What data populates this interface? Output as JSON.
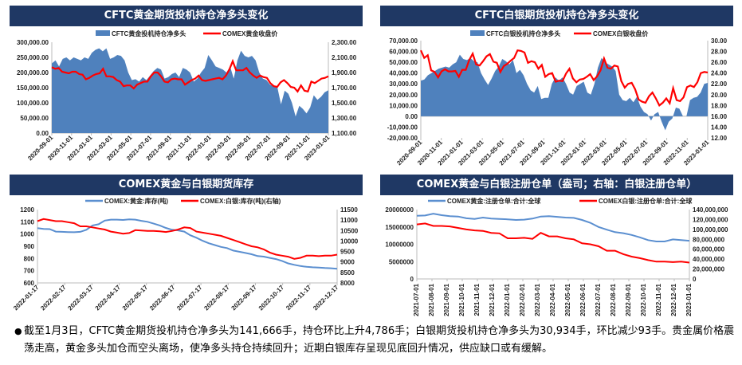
{
  "colors": {
    "navy": "#1f3864",
    "area": "#4f81bd",
    "red": "#ff0000",
    "blue": "#5b8fd0"
  },
  "chart_data": [
    {
      "id": "c1",
      "type": "area+line",
      "title": "CFTC黄金期货投机持仓净多头变化",
      "legend": [
        "CFTC黄金投机持仓净多头",
        "COMEX黄金收盘价"
      ],
      "ylim": [
        0,
        300000
      ],
      "y2lim": [
        1100,
        2300
      ],
      "yticks": [
        "0.00",
        "50,000.00",
        "100,000.00",
        "150,000.00",
        "200,000.00",
        "250,000.00",
        "300,000.00"
      ],
      "y2ticks": [
        "1,100.00",
        "1,300.00",
        "1,500.00",
        "1,700.00",
        "1,900.00",
        "2,100.00",
        "2,300.00"
      ],
      "xticks": [
        "2020-09-01",
        "2020-11-01",
        "2021-01-01",
        "2021-03-01",
        "2021-05-01",
        "2021-07-01",
        "2021-09-01",
        "2021-11-01",
        "2022-01-01",
        "2022-03-01",
        "2022-05-01",
        "2022-07-01",
        "2022-09-01",
        "2022-11-01",
        "2023-01-01"
      ],
      "series": [
        {
          "name": "CFTC黄金投机持仓净多头",
          "axis": "left",
          "kind": "area",
          "values": [
            230000,
            240000,
            220000,
            245000,
            250000,
            240000,
            250000,
            245000,
            240000,
            250000,
            245000,
            265000,
            275000,
            280000,
            270000,
            280000,
            245000,
            250000,
            258000,
            255000,
            240000,
            200000,
            175000,
            178000,
            170000,
            185000,
            175000,
            190000,
            205000,
            215000,
            210000,
            180000,
            185000,
            195000,
            200000,
            185000,
            215000,
            210000,
            200000,
            170000,
            180000,
            200000,
            215000,
            258000,
            240000,
            220000,
            215000,
            210000,
            200000,
            220000,
            180000,
            240000,
            272000,
            255000,
            250000,
            255000,
            240000,
            200000,
            180000,
            175000,
            160000,
            155000,
            150000,
            95000,
            140000,
            130000,
            100000,
            55000,
            90000,
            80000,
            65000,
            85000,
            125000,
            110000,
            120000,
            135000,
            141666
          ]
        },
        {
          "name": "COMEX黄金收盘价",
          "axis": "right",
          "kind": "line",
          "values": [
            1970,
            1950,
            1960,
            1910,
            1900,
            1890,
            1910,
            1910,
            1880,
            1870,
            1810,
            1830,
            1860,
            1880,
            1890,
            1950,
            1850,
            1850,
            1840,
            1800,
            1780,
            1720,
            1730,
            1730,
            1690,
            1740,
            1760,
            1780,
            1780,
            1850,
            1900,
            1900,
            1850,
            1780,
            1770,
            1810,
            1820,
            1810,
            1810,
            1740,
            1770,
            1800,
            1820,
            1860,
            1800,
            1790,
            1800,
            1810,
            1820,
            1830,
            1810,
            1860,
            1940,
            2050,
            1930,
            1930,
            1930,
            1960,
            1900,
            1860,
            1830,
            1860,
            1840,
            1830,
            1760,
            1720,
            1710,
            1770,
            1800,
            1760,
            1710,
            1700,
            1650,
            1730,
            1660,
            1650,
            1780,
            1760,
            1790,
            1820,
            1830,
            1850
          ]
        }
      ]
    },
    {
      "id": "c2",
      "type": "area+line",
      "title": "CFTC白银期货投机持仓净多头变化",
      "legend": [
        "CFTC白银投机持仓净多头",
        "COMEX白银收盘价"
      ],
      "ylim": [
        -20000,
        70000
      ],
      "y2lim": [
        12,
        30
      ],
      "yticks": [
        "-20,000.00",
        "-10,000.00",
        "0.00",
        "10,000.00",
        "20,000.00",
        "30,000.00",
        "40,000.00",
        "50,000.00",
        "60,000.00",
        "70,000.00"
      ],
      "y2ticks": [
        "12.00",
        "14.00",
        "16.00",
        "18.00",
        "20.00",
        "22.00",
        "24.00",
        "26.00",
        "28.00",
        "30.00"
      ],
      "xticks": [
        "2020-09-01",
        "2020-11-01",
        "2021-01-01",
        "2021-03-01",
        "2021-05-01",
        "2021-07-01",
        "2021-09-01",
        "2021-11-01",
        "2022-01-01",
        "2022-03-01",
        "2022-05-01",
        "2022-07-01",
        "2022-09-01",
        "2022-11-01",
        "2023-01-01"
      ],
      "series": [
        {
          "name": "CFTC白银投机持仓净多头",
          "axis": "left",
          "kind": "area",
          "values": [
            33000,
            34000,
            38000,
            40000,
            42000,
            44000,
            45000,
            46000,
            45000,
            48000,
            50000,
            57000,
            53000,
            52000,
            54000,
            51000,
            50000,
            40000,
            34000,
            29000,
            35000,
            42000,
            46000,
            53000,
            51000,
            48000,
            52000,
            40000,
            43000,
            38000,
            30000,
            24000,
            22000,
            28000,
            16000,
            17000,
            17000,
            30000,
            36000,
            33000,
            36000,
            30000,
            22000,
            20000,
            28000,
            30000,
            32000,
            22000,
            20000,
            30000,
            45000,
            54000,
            50000,
            48000,
            46000,
            42000,
            20000,
            15000,
            14000,
            17000,
            13000,
            18000,
            9000,
            4000,
            2000,
            -4000,
            2000,
            4000,
            -5000,
            -13000,
            -5000,
            -2000,
            8000,
            7000,
            0,
            0,
            15000,
            17000,
            18000,
            22000,
            30000,
            30934
          ]
        },
        {
          "name": "COMEX白银收盘价",
          "axis": "right",
          "kind": "line",
          "values": [
            28.2,
            26.8,
            27.3,
            24.5,
            24.2,
            23.2,
            24.3,
            24.7,
            24.3,
            24.3,
            24.4,
            23.3,
            24.6,
            24.6,
            26.4,
            27.6,
            25.6,
            25.4,
            26.2,
            27.1,
            27.5,
            26.1,
            25.9,
            24.2,
            25.3,
            25.7,
            26.3,
            26.8,
            28.2,
            28.1,
            27.8,
            25.9,
            26.2,
            26.0,
            24.8,
            25.5,
            23.3,
            23.8,
            24.0,
            22.4,
            22.6,
            22.5,
            23.9,
            24.8,
            23.0,
            22.3,
            22.8,
            22.9,
            23.3,
            23.8,
            22.7,
            23.4,
            24.5,
            26.7,
            25.0,
            24.8,
            25.4,
            25.2,
            22.5,
            21.3,
            22.0,
            22.2,
            21.0,
            19.1,
            18.7,
            18.5,
            19.7,
            20.4,
            19.3,
            18.0,
            18.5,
            19.3,
            18.4,
            21.2,
            19.0,
            18.8,
            19.5,
            21.4,
            21.7,
            21.4,
            22.3,
            24.0,
            24.2,
            24.1
          ]
        }
      ]
    },
    {
      "id": "c3",
      "type": "line",
      "title": "COMEX黄金与白银期货库存",
      "legend": [
        "COMEX:黄金:库存(吨)",
        "COMEX:白银:库存(吨)(右轴)"
      ],
      "ylim": [
        600,
        1200
      ],
      "y2lim": [
        8000,
        11500
      ],
      "yticks": [
        "600",
        "700",
        "800",
        "900",
        "1000",
        "1100",
        "1200"
      ],
      "y2ticks": [
        "8000",
        "8500",
        "9000",
        "9500",
        "10000",
        "10500",
        "11000",
        "11500"
      ],
      "xticks": [
        "2022-01-17",
        "2022-02-17",
        "2022-03-17",
        "2022-04-17",
        "2022-05-17",
        "2022-06-17",
        "2022-07-17",
        "2022-08-17",
        "2022-09-17",
        "2022-10-17",
        "2022-11-17",
        "2022-12-17"
      ],
      "series": [
        {
          "name": "COMEX:黄金:库存(吨)",
          "axis": "left",
          "kind": "line",
          "values": [
            1048,
            1042,
            1040,
            1020,
            1018,
            1016,
            1015,
            1018,
            1035,
            1070,
            1080,
            1110,
            1118,
            1118,
            1115,
            1120,
            1118,
            1108,
            1100,
            1085,
            1070,
            1050,
            1035,
            1030,
            1020,
            990,
            970,
            945,
            925,
            910,
            895,
            885,
            865,
            855,
            845,
            835,
            820,
            815,
            805,
            795,
            780,
            760,
            748,
            738,
            732,
            728,
            725,
            722,
            720,
            716
          ]
        },
        {
          "name": "COMEX:白银:库存(吨)(右轴)",
          "axis": "right",
          "kind": "line",
          "values": [
            10950,
            11050,
            11000,
            10950,
            10950,
            10900,
            10850,
            10700,
            10700,
            10650,
            10600,
            10550,
            10450,
            10400,
            10350,
            10380,
            10520,
            10500,
            10480,
            10480,
            10460,
            10430,
            10480,
            10550,
            10650,
            10620,
            10450,
            10400,
            10350,
            10300,
            10250,
            10150,
            10050,
            9950,
            9850,
            9750,
            9700,
            9600,
            9450,
            9350,
            9300,
            9250,
            9150,
            9200,
            9300,
            9300,
            9280,
            9300,
            9300,
            9350
          ]
        }
      ]
    },
    {
      "id": "c4",
      "type": "line",
      "title": "COMEX黄金与白银注册仓单（盎司；右轴：白银注册仓单）",
      "legend": [
        "COMEX黄金:注册仓单:合计:全球",
        "COMEX白银:注册仓单:合计:全球"
      ],
      "ylim": [
        0,
        20000000
      ],
      "y2lim": [
        0,
        140000000
      ],
      "yticks": [
        "0",
        "5000000",
        "10000000",
        "15000000",
        "20000000"
      ],
      "y2ticks": [
        "0",
        "20,000,000",
        "40,000,000",
        "60,000,000",
        "80,000,000",
        "100,000,000",
        "120,000,000",
        "140,000,000"
      ],
      "xticks": [
        "2021-07-01",
        "2021-08-01",
        "2021-09-01",
        "2021-10-01",
        "2021-11-01",
        "2021-12-01",
        "2022-01-01",
        "2022-02-01",
        "2022-03-01",
        "2022-04-01",
        "2022-05-01",
        "2022-06-01",
        "2022-07-01",
        "2022-08-01",
        "2022-09-01",
        "2022-10-01",
        "2022-11-01",
        "2022-12-01",
        "2023-01-01"
      ],
      "series": [
        {
          "name": "COMEX黄金:注册仓单:合计:全球",
          "axis": "left",
          "kind": "line",
          "values": [
            18200000,
            18300000,
            18800000,
            18400000,
            18100000,
            18000000,
            17500000,
            17300000,
            17700000,
            17400000,
            17300000,
            17200000,
            17000000,
            17100000,
            17400000,
            18000000,
            18100000,
            17900000,
            17700000,
            17600000,
            17000000,
            16200000,
            15000000,
            14200000,
            13500000,
            13200000,
            12700000,
            12000000,
            11200000,
            10800000,
            10800000,
            11400000,
            11200000,
            11000000
          ]
        },
        {
          "name": "COMEX白银:注册仓单:合计:全球",
          "axis": "right",
          "kind": "line",
          "values": [
            110000000,
            112000000,
            107000000,
            107000000,
            106000000,
            103000000,
            100000000,
            98000000,
            97000000,
            93000000,
            92000000,
            82000000,
            82000000,
            83000000,
            81000000,
            93000000,
            86000000,
            86000000,
            82000000,
            80000000,
            72000000,
            70000000,
            66000000,
            57000000,
            57000000,
            50000000,
            45000000,
            42000000,
            38000000,
            35000000,
            35000000,
            34000000,
            35000000,
            33000000
          ]
        }
      ]
    }
  ],
  "note": "截至1月3日，CFTC黄金期货投机持仓净多头为141,666手，持仓环比上升4,786手；白银期货投机持仓净多头为30,934手，环比减少93手。贵金属价格震荡走高，黄金多头加仓而空头离场，使净多头持仓持续回升；近期白银库存呈现见底回升情况，供应缺口或有缓解。",
  "bullet": "●"
}
